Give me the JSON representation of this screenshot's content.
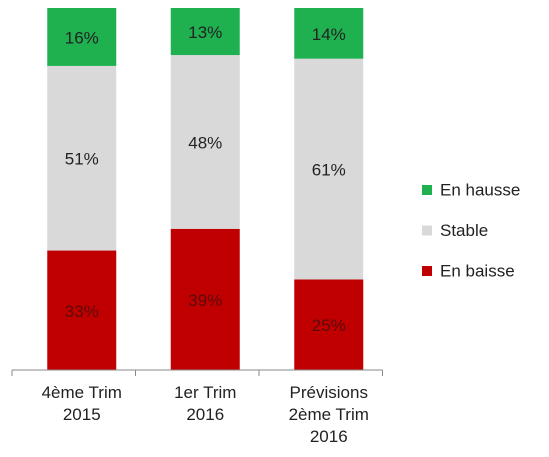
{
  "chart_data": {
    "type": "stacked_bar",
    "categories": [
      "4ème Trim\n2015",
      "1er Trim\n2016",
      "Prévisions\n2ème Trim\n2016"
    ],
    "series": [
      {
        "name": "En baisse",
        "color": "#c00000",
        "values": [
          33,
          39,
          25
        ],
        "value_labels": [
          "33%",
          "39%",
          "25%"
        ]
      },
      {
        "name": "Stable",
        "color": "#d9d9d9",
        "values": [
          51,
          48,
          61
        ],
        "value_labels": [
          "51%",
          "48%",
          "61%"
        ]
      },
      {
        "name": "En hausse",
        "color": "#1fb050",
        "values": [
          16,
          13,
          14
        ],
        "value_labels": [
          "16%",
          "13%",
          "14%"
        ]
      }
    ],
    "legend": "right"
  }
}
